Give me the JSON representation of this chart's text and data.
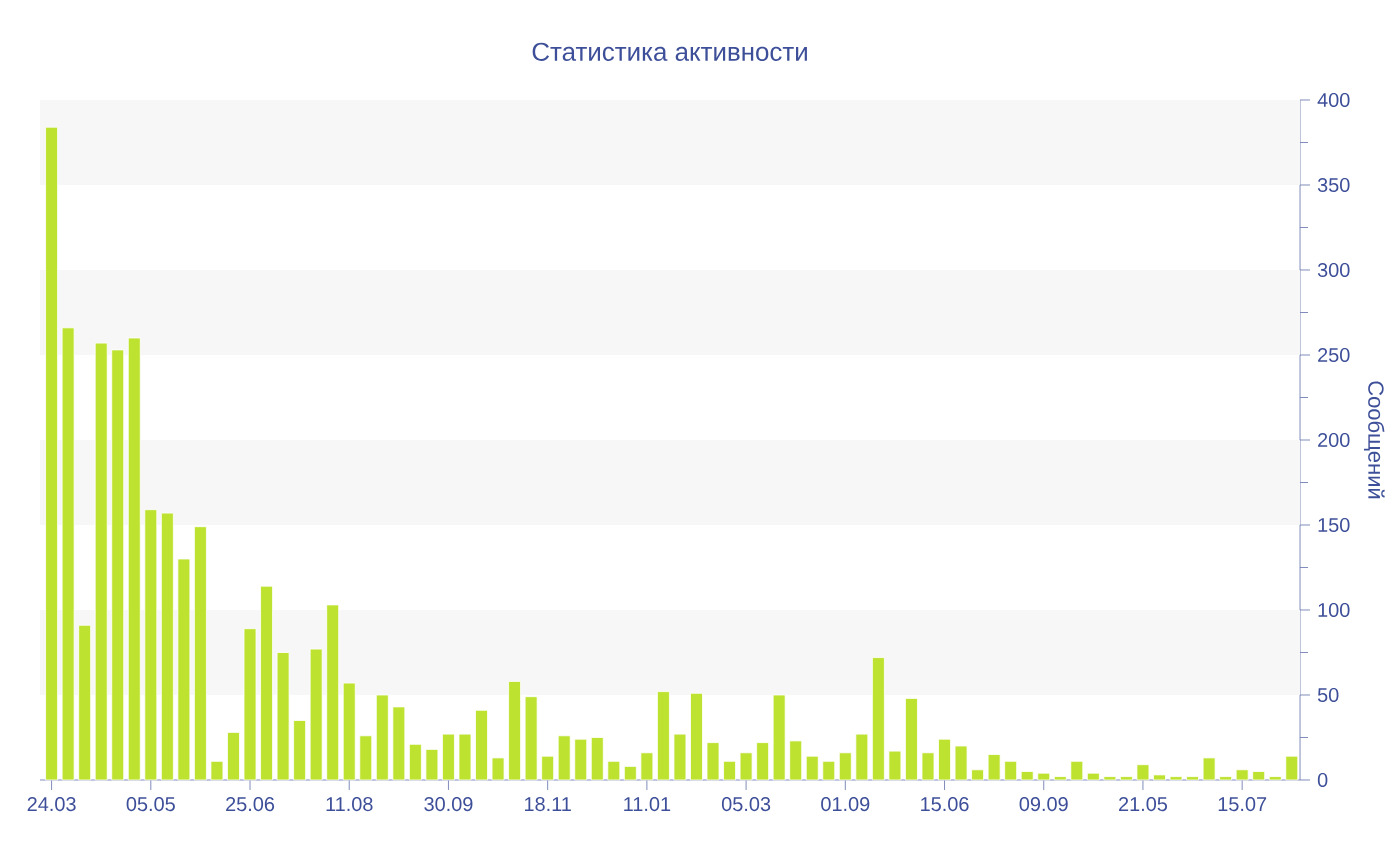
{
  "chart_data": {
    "type": "bar",
    "title": "Статистика активности",
    "ylabel": "Сообщений",
    "categories": [
      "24.03",
      null,
      null,
      null,
      null,
      null,
      "05.05",
      null,
      null,
      null,
      null,
      null,
      "25.06",
      null,
      null,
      null,
      null,
      null,
      "11.08",
      null,
      null,
      null,
      null,
      null,
      "30.09",
      null,
      null,
      null,
      null,
      null,
      "18.11",
      null,
      null,
      null,
      null,
      null,
      "11.01",
      null,
      null,
      null,
      null,
      null,
      "05.03",
      null,
      null,
      null,
      null,
      null,
      "01.09",
      null,
      null,
      null,
      null,
      null,
      "15.06",
      null,
      null,
      null,
      null,
      null,
      "09.09",
      null,
      null,
      null,
      null,
      null,
      "21.05",
      null,
      null,
      null,
      null,
      null,
      "15.07",
      null,
      null,
      null
    ],
    "values": [
      384,
      266,
      91,
      257,
      253,
      260,
      159,
      157,
      130,
      149,
      11,
      28,
      89,
      114,
      75,
      35,
      77,
      103,
      57,
      26,
      50,
      43,
      21,
      18,
      27,
      27,
      41,
      13,
      58,
      49,
      14,
      26,
      24,
      25,
      11,
      8,
      16,
      52,
      27,
      51,
      22,
      11,
      16,
      22,
      50,
      23,
      14,
      11,
      16,
      27,
      72,
      17,
      48,
      16,
      24,
      20,
      6,
      15,
      11,
      5,
      4,
      2,
      11,
      4,
      2,
      2,
      9,
      3,
      2,
      2,
      13,
      2,
      6,
      5,
      2,
      14
    ],
    "color": "#bde22f",
    "ylim": [
      0,
      400
    ],
    "yticks": [
      0,
      50,
      100,
      150,
      200,
      250,
      300,
      350,
      400
    ],
    "bands": [
      {
        "axis": "y",
        "from": 50,
        "to": 100,
        "color": "#f7f7f7"
      },
      {
        "axis": "y",
        "from": 150,
        "to": 200,
        "color": "#f7f7f7"
      },
      {
        "axis": "y",
        "from": 250,
        "to": 300,
        "color": "#f7f7f7"
      },
      {
        "axis": "y",
        "from": 350,
        "to": 400,
        "color": "#f7f7f7"
      }
    ]
  }
}
